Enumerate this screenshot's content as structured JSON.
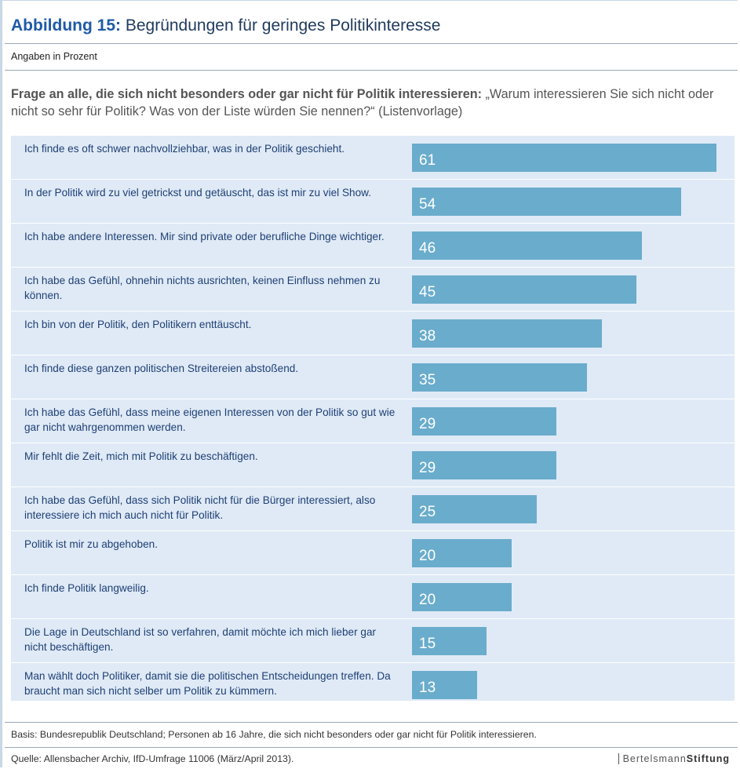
{
  "header": {
    "figure_label": "Abbildung 15:",
    "title": "Begründungen für geringes Politikinteresse",
    "subtitle": "Angaben in Prozent"
  },
  "question": {
    "lead": "Frage an alle, die sich nicht besonders oder gar nicht für Politik interessieren:",
    "text": "„Warum interessieren Sie sich nicht oder nicht so sehr für Politik? Was von der Liste würden Sie nennen?“ (Listenvorlage)"
  },
  "chart_data": {
    "type": "bar",
    "orientation": "horizontal",
    "xlim": [
      0,
      61
    ],
    "categories": [
      "Ich finde es oft schwer nachvollziehbar, was in der Politik geschieht.",
      "In der Politik wird zu viel getrickst und getäuscht, das ist mir zu viel Show.",
      "Ich habe andere Interessen. Mir sind private oder berufliche Dinge wichtiger.",
      "Ich habe das Gefühl, ohnehin nichts ausrichten, keinen Einfluss nehmen zu können.",
      "Ich bin von der Politik, den Politikern enttäuscht.",
      "Ich finde diese ganzen politischen Streitereien abstoßend.",
      "Ich habe das Gefühl, dass meine eigenen Interessen von der Politik so gut wie gar nicht wahrgenommen werden.",
      "Mir fehlt die Zeit, mich mit Politik zu beschäftigen.",
      "Ich habe das Gefühl, dass sich Politik nicht für die Bürger interessiert, also interessiere ich mich auch nicht für Politik.",
      "Politik ist mir zu abgehoben.",
      "Ich finde Politik langweilig.",
      "Die Lage in Deutschland ist so verfahren, damit möchte ich mich lieber gar nicht beschäftigen.",
      "Man wählt doch Politiker, damit sie die politischen Entscheidungen treffen. Da braucht man sich nicht selber um Politik zu kümmern."
    ],
    "values": [
      61,
      54,
      46,
      45,
      38,
      35,
      29,
      29,
      25,
      20,
      20,
      15,
      13
    ],
    "bar_color": "#6aaccc",
    "background_color": "#dfeaf6"
  },
  "footer": {
    "basis": "Basis: Bundesrepublik Deutschland; Personen ab 16 Jahre, die sich nicht besonders oder gar nicht für Politik interessieren.",
    "source": "Quelle: Allensbacher Archiv, IfD-Umfrage 11006 (März/April 2013).",
    "brand_light": "Bertelsmann",
    "brand_bold": "Stiftung"
  }
}
